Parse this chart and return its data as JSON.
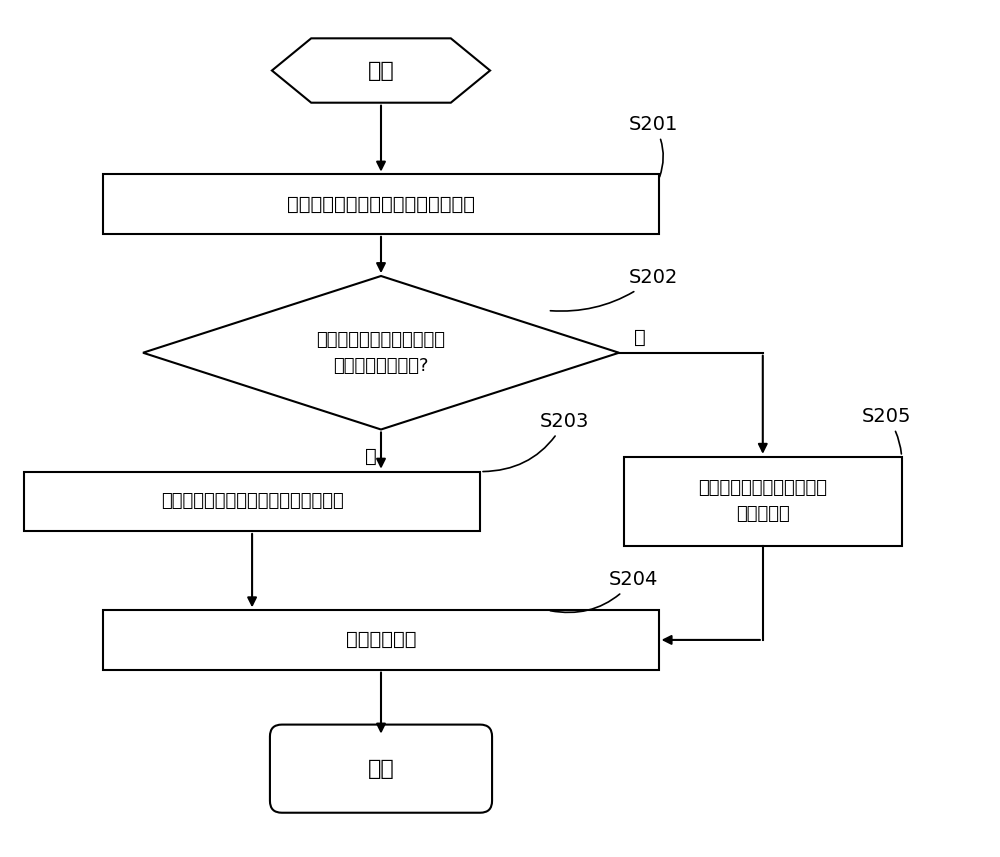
{
  "bg_color": "#ffffff",
  "box_color": "#ffffff",
  "box_edge_color": "#000000",
  "text_color": "#000000",
  "arrow_color": "#000000",
  "font_size": 14,
  "label_font_size": 14,
  "start_label": "开始",
  "end_label": "结束",
  "s201_text": "获取检测的终端的当前工作状态参数",
  "s202_text": "当前工作状态参数与正常工\n作状态参数相匹配?",
  "s203_text": "将图形码的扫描状态切换为非扫描状态",
  "s204_text": "输出提示信息",
  "s205_text": "将图形码的扫描状态切换为\n可扫描状态",
  "yes_text": "是",
  "no_text": "否",
  "step_names": [
    "S201",
    "S202",
    "S203",
    "S204",
    "S205"
  ],
  "lw": 1.5
}
